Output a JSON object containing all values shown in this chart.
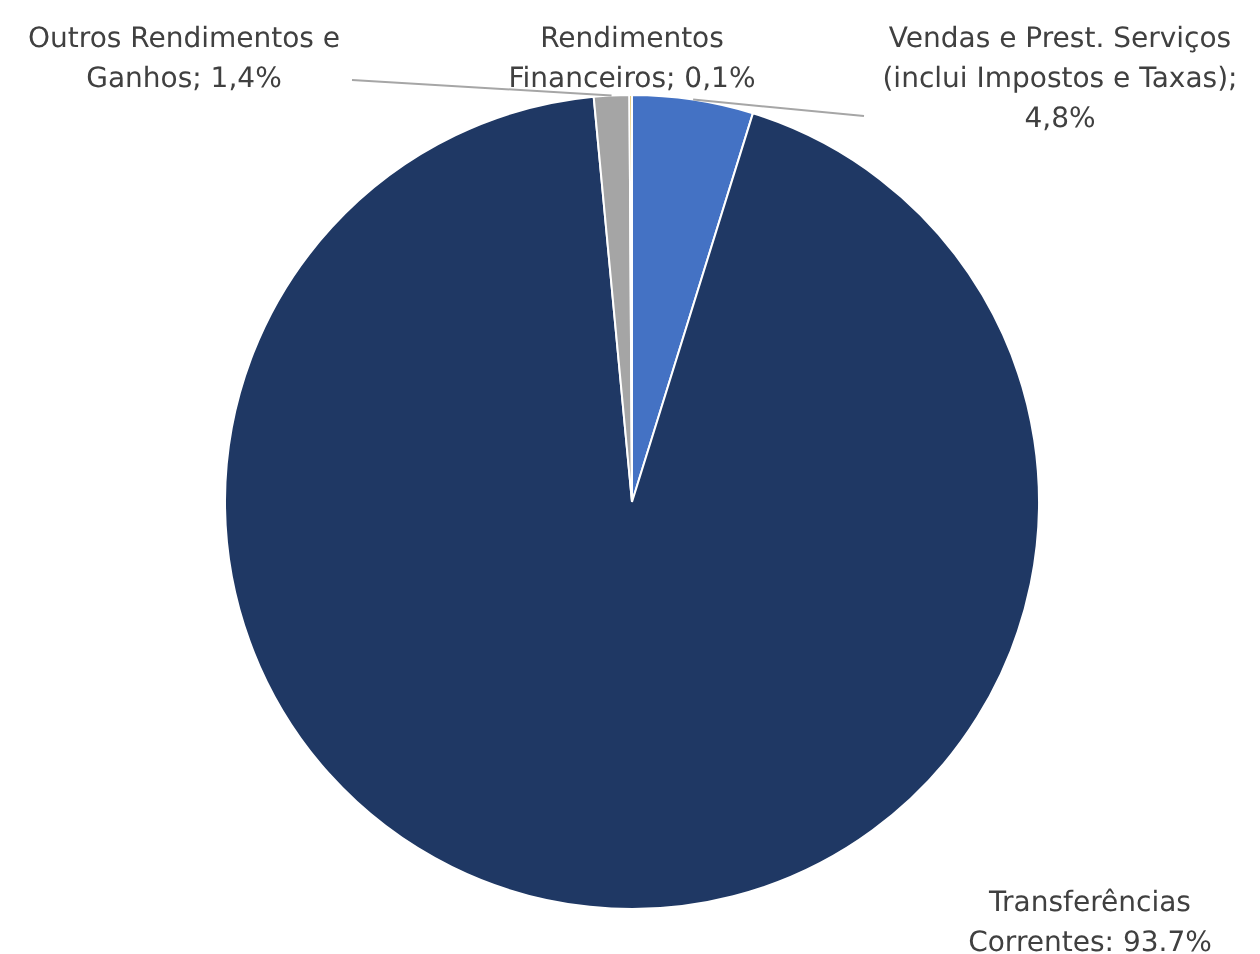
{
  "chart_data": {
    "type": "pie",
    "categories": [
      "Vendas e Prest. Serviços (inclui Impostos e Taxas)",
      "Transferências Correntes",
      "Outros Rendimentos e Ganhos",
      "Rendimentos Financeiros"
    ],
    "values": [
      4.8,
      93.7,
      1.4,
      0.1
    ],
    "colors": [
      "#4472c4",
      "#1f3864",
      "#a5a5a5",
      "#d4a017"
    ],
    "value_labels": [
      "; 4,8%",
      ": 93.7%",
      "; 1,4%",
      "; 0,1%"
    ],
    "legend": false
  }
}
